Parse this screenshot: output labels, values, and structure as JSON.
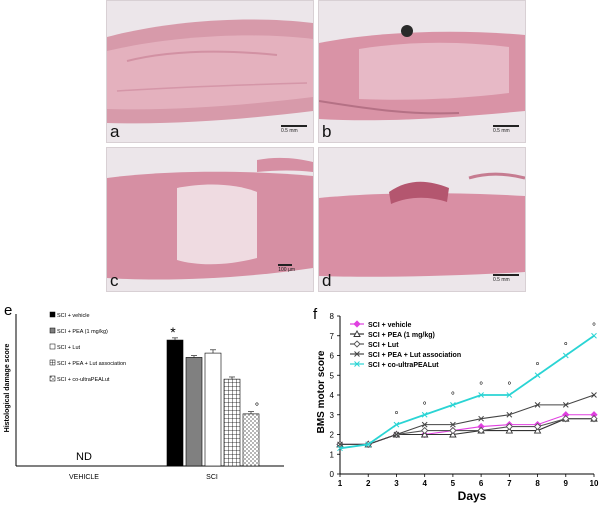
{
  "panels": {
    "a": {
      "label": "a",
      "scale": "0.5 mm"
    },
    "b": {
      "label": "b",
      "scale": "0.5 mm"
    },
    "c": {
      "label": "c",
      "scale": "100 µm"
    },
    "d": {
      "label": "d",
      "scale": "0.5 mm"
    },
    "e": {
      "label": "e"
    },
    "f": {
      "label": "f"
    }
  },
  "chart_data": [
    {
      "type": "bar",
      "ylabel": "Histological damage score",
      "categories": [
        "VEHICLE",
        "SCI"
      ],
      "nd_label": "ND",
      "significance_star": "*",
      "significance_circle": "°",
      "ylim": [
        0,
        7
      ],
      "legend_position": "top-left",
      "series": [
        {
          "name": "SCI + vehicle",
          "values": [
            null,
            5.8
          ],
          "error": 0.1,
          "fill": "solid-black"
        },
        {
          "name": "SCI + PEA (1 mg/kg)",
          "values": [
            null,
            5.0
          ],
          "error": 0.08,
          "fill": "grey"
        },
        {
          "name": "SCI + Lut",
          "values": [
            null,
            5.2
          ],
          "error": 0.15,
          "fill": "white"
        },
        {
          "name": "SCI + PEA + Lut association",
          "values": [
            null,
            4.0
          ],
          "error": 0.1,
          "fill": "grid"
        },
        {
          "name": "SCI + co-ultraPEALut",
          "values": [
            null,
            2.4
          ],
          "error": 0.1,
          "fill": "dots"
        }
      ]
    },
    {
      "type": "line",
      "xlabel": "Days",
      "ylabel": "BMS motor score",
      "x": [
        1,
        2,
        3,
        4,
        5,
        6,
        7,
        8,
        9,
        10
      ],
      "ylim": [
        0,
        8
      ],
      "xlim": [
        1,
        10
      ],
      "yticks": [
        0,
        1,
        2,
        3,
        4,
        5,
        6,
        7,
        8
      ],
      "legend_position": "top-left",
      "significance_marker": "°",
      "significant_days": [
        3,
        4,
        5,
        6,
        7,
        8,
        9,
        10
      ],
      "series": [
        {
          "name": "SCI + vehicle",
          "marker": "diamond",
          "color": "#e040e0",
          "values": [
            1.5,
            1.5,
            2.0,
            2.0,
            2.2,
            2.4,
            2.5,
            2.5,
            3.0,
            3.0
          ]
        },
        {
          "name": "SCI + PEA (1 mg/kg)",
          "marker": "triangle",
          "color": "#333333",
          "values": [
            1.5,
            1.5,
            2.0,
            2.0,
            2.0,
            2.2,
            2.2,
            2.2,
            2.8,
            2.8
          ]
        },
        {
          "name": "SCI + Lut",
          "marker": "open-diamond",
          "color": "#555555",
          "values": [
            1.5,
            1.5,
            2.0,
            2.2,
            2.2,
            2.2,
            2.4,
            2.4,
            2.8,
            2.8
          ]
        },
        {
          "name": "SCI + PEA + Lut association",
          "marker": "x",
          "color": "#444444",
          "values": [
            1.5,
            1.5,
            2.0,
            2.5,
            2.5,
            2.8,
            3.0,
            3.5,
            3.5,
            4.0
          ]
        },
        {
          "name": "SCI + co-ultraPEALut",
          "marker": "x",
          "color": "#2ad4d4",
          "values": [
            1.3,
            1.5,
            2.5,
            3.0,
            3.5,
            4.0,
            4.0,
            5.0,
            6.0,
            7.0
          ]
        }
      ]
    }
  ]
}
